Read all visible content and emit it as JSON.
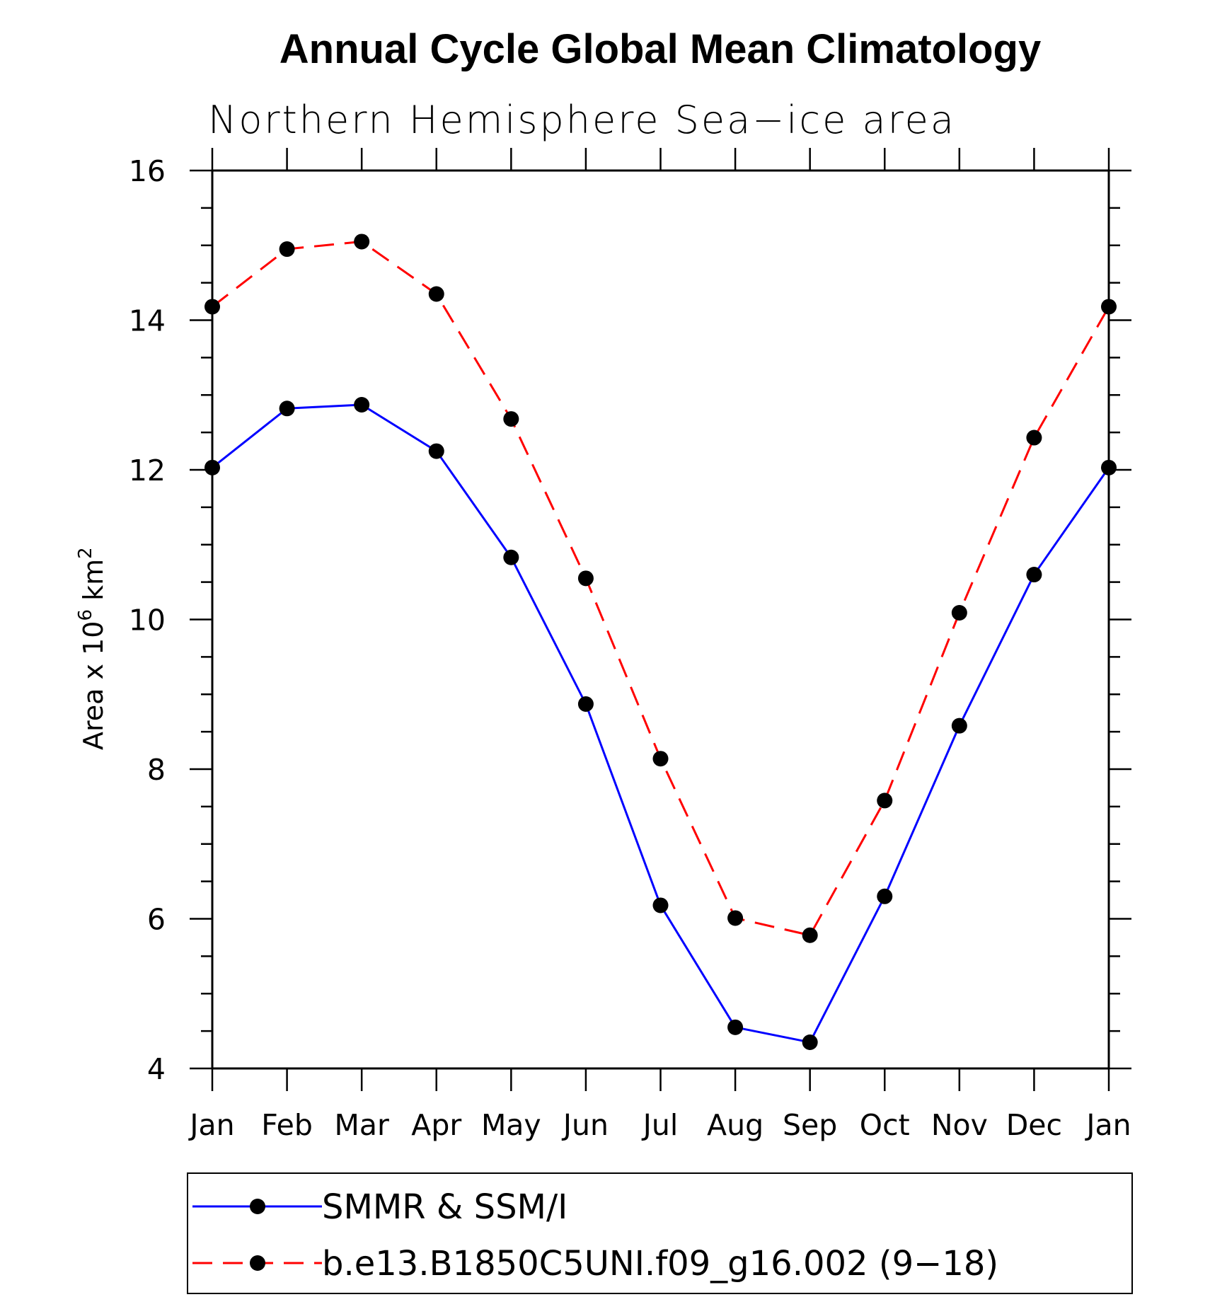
{
  "chart_data": {
    "type": "line",
    "title": "Annual Cycle Global Mean Climatology",
    "subtitle": "Northern Hemisphere Sea−ice area",
    "ylabel_main": "Area x 10",
    "ylabel_exp1": "6",
    "ylabel_unit": " km",
    "ylabel_exp2": "2",
    "ylim": [
      4,
      16
    ],
    "yticks": [
      4,
      6,
      8,
      10,
      12,
      14,
      16
    ],
    "ytick_labels": [
      "4",
      "6",
      "8",
      "10",
      "12",
      "14",
      "16"
    ],
    "categories": [
      "Jan",
      "Feb",
      "Mar",
      "Apr",
      "May",
      "Jun",
      "Jul",
      "Aug",
      "Sep",
      "Oct",
      "Nov",
      "Dec",
      "Jan"
    ],
    "grid": false,
    "legend_position": "bottom",
    "series": [
      {
        "name": "SMMR & SSM/I",
        "color": "#0000ff",
        "line_style": "solid",
        "marker_color": "#000000",
        "values": [
          12.03,
          12.82,
          12.87,
          12.25,
          10.83,
          8.87,
          6.18,
          4.55,
          4.35,
          6.3,
          8.58,
          10.6,
          12.03
        ]
      },
      {
        "name": "b.e13.B1850C5UNI.f09_g16.002 (9−18)",
        "color": "#ff0000",
        "line_style": "dashed",
        "marker_color": "#000000",
        "values": [
          14.18,
          14.95,
          15.05,
          14.35,
          12.68,
          10.55,
          8.14,
          6.01,
          5.78,
          7.58,
          10.09,
          12.43,
          14.18
        ]
      }
    ]
  }
}
